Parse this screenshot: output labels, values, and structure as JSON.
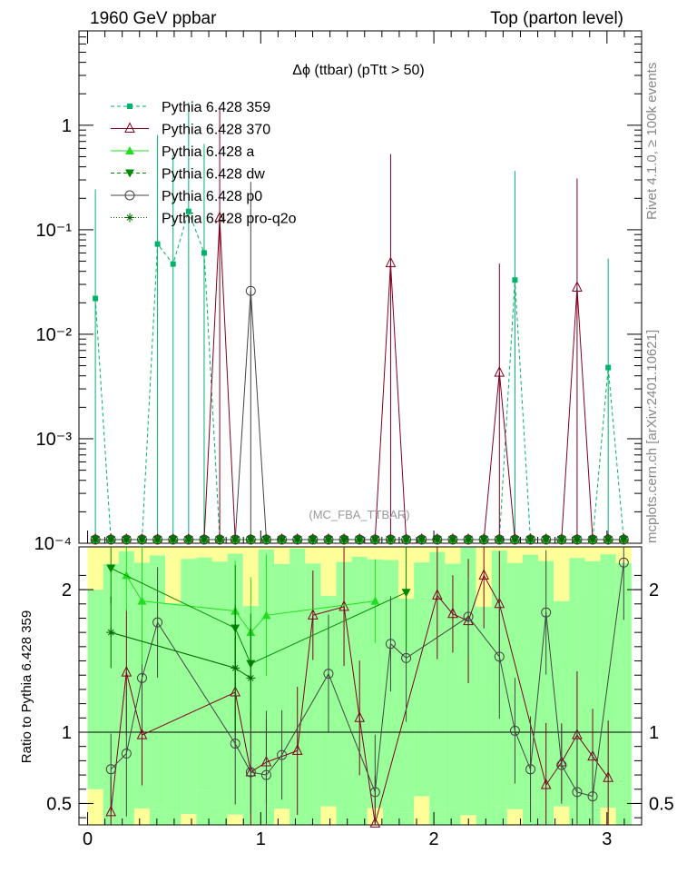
{
  "header": {
    "left_label": "1960 GeV ppbar",
    "right_label": "Top (parton level)",
    "side_label_top": "Rivet 4.1.0, ≥ 100k events",
    "side_label_bottom": "mcplots.cern.ch [arXiv:2401.10621]",
    "watermark": "(MC_FBA_TTBAR)"
  },
  "chart_data": {
    "type": "line",
    "title": "Δϕ (ttbar) (pTtt > 50)",
    "main": {
      "yscale": "log",
      "ylim": [
        0.0001,
        8
      ],
      "xlim": [
        -0.05,
        3.2
      ],
      "y_ticks": [
        {
          "value": 1,
          "label": "1"
        },
        {
          "value": 0.1,
          "label": "10⁻¹"
        },
        {
          "value": 0.01,
          "label": "10⁻²"
        },
        {
          "value": 0.001,
          "label": "10⁻³"
        },
        {
          "value": 0.0001,
          "label": "10⁻⁴"
        }
      ]
    },
    "ratio": {
      "ylabel": "Ratio to Pythia 6.428 359",
      "ylim": [
        0.35,
        2.3
      ],
      "y_ticks": [
        {
          "value": 0.5,
          "label": "0.5"
        },
        {
          "value": 1,
          "label": "1"
        },
        {
          "value": 2,
          "label": "2"
        }
      ],
      "x_ticks": [
        {
          "value": 0,
          "label": "0"
        },
        {
          "value": 1,
          "label": "1"
        },
        {
          "value": 2,
          "label": "2"
        },
        {
          "value": 3,
          "label": "3"
        }
      ]
    },
    "x_bin_centers": [
      0.0449,
      0.1346,
      0.2244,
      0.3142,
      0.4039,
      0.4937,
      0.5834,
      0.6732,
      0.763,
      0.8527,
      0.9425,
      1.0322,
      1.122,
      1.2118,
      1.3015,
      1.3913,
      1.481,
      1.5708,
      1.6606,
      1.7503,
      1.8401,
      1.9298,
      2.0196,
      2.1093,
      2.1991,
      2.2889,
      2.3786,
      2.4684,
      2.5581,
      2.6479,
      2.7377,
      2.8274,
      2.9172,
      3.0069,
      3.0967
    ],
    "series": [
      {
        "name": "Pythia 6.428 359",
        "color": "#00b36b",
        "marker": "square",
        "dash": "4,3",
        "points": [
          [
            0.0449,
            0.022
          ],
          [
            0.4039,
            0.073
          ],
          [
            0.4937,
            0.047
          ],
          [
            0.5834,
            0.15
          ],
          [
            0.6732,
            0.06
          ],
          [
            2.4684,
            0.033
          ],
          [
            3.0069,
            0.0048
          ]
        ]
      },
      {
        "name": "Pythia 6.428 370",
        "color": "#800020",
        "marker": "triangle-open",
        "dash": "",
        "points": [
          [
            0.763,
            0.13
          ],
          [
            1.7503,
            0.048
          ],
          [
            2.3786,
            0.0043
          ],
          [
            2.8274,
            0.028
          ]
        ]
      },
      {
        "name": "Pythia 6.428 a",
        "color": "#22dd22",
        "marker": "triangle",
        "dash": "",
        "points": []
      },
      {
        "name": "Pythia 6.428 dw",
        "color": "#008800",
        "marker": "triangle-down",
        "dash": "4,3",
        "points": []
      },
      {
        "name": "Pythia 6.428 p0",
        "color": "#444444",
        "marker": "circle-open",
        "dash": "",
        "points": [
          [
            0.9425,
            0.026
          ]
        ]
      },
      {
        "name": "Pythia 6.428 pro-q2o",
        "color": "#006600",
        "marker": "star",
        "dash": "1,2",
        "points": []
      }
    ],
    "ratio_series": [
      {
        "name": "Pythia 6.428 370",
        "color": "#800020",
        "marker": "triangle-open",
        "points": [
          [
            0.1346,
            0.44
          ],
          [
            0.2244,
            1.42
          ],
          [
            0.3142,
            0.98
          ],
          [
            0.8527,
            1.28
          ],
          [
            0.9425,
            0.72
          ],
          [
            1.0322,
            0.79
          ],
          [
            1.2118,
            0.87
          ],
          [
            1.3015,
            1.82
          ],
          [
            1.481,
            1.88
          ],
          [
            1.5708,
            1.1
          ],
          [
            1.6606,
            0.36
          ],
          [
            2.0196,
            1.96
          ],
          [
            2.1093,
            1.83
          ],
          [
            2.1991,
            1.78
          ],
          [
            2.2889,
            2.1
          ],
          [
            2.3786,
            1.9
          ],
          [
            2.6479,
            0.63
          ],
          [
            2.7377,
            0.79
          ],
          [
            2.8274,
            0.98
          ],
          [
            2.9172,
            0.83
          ],
          [
            3.0069,
            0.68
          ]
        ]
      },
      {
        "name": "Pythia 6.428 p0",
        "color": "#444444",
        "marker": "circle-open",
        "points": [
          [
            0.1346,
            0.74
          ],
          [
            0.2244,
            0.85
          ],
          [
            0.3142,
            1.38
          ],
          [
            0.4039,
            1.77
          ],
          [
            0.8527,
            0.92
          ],
          [
            0.9425,
            0.72
          ],
          [
            1.0322,
            0.7
          ],
          [
            1.122,
            0.84
          ],
          [
            1.3913,
            1.41
          ],
          [
            1.6606,
            0.58
          ],
          [
            1.7503,
            1.62
          ],
          [
            1.8401,
            1.52
          ],
          [
            2.1991,
            1.81
          ],
          [
            2.3786,
            1.53
          ],
          [
            2.4684,
            1.01
          ],
          [
            2.5581,
            0.74
          ],
          [
            2.6479,
            1.84
          ],
          [
            2.7377,
            0.77
          ],
          [
            2.8274,
            0.58
          ],
          [
            2.9172,
            0.55
          ],
          [
            3.0967,
            2.19
          ]
        ]
      },
      {
        "name": "Pythia 6.428 a",
        "color": "#22dd22",
        "marker": "triangle",
        "points": [
          [
            0.2244,
            2.1
          ],
          [
            0.3142,
            1.92
          ],
          [
            0.8527,
            1.85
          ],
          [
            0.9425,
            1.7
          ],
          [
            1.0322,
            1.82
          ],
          [
            1.6606,
            1.92
          ]
        ]
      },
      {
        "name": "Pythia 6.428 dw",
        "color": "#008800",
        "marker": "triangle-down",
        "points": [
          [
            0.1346,
            2.15
          ],
          [
            0.8527,
            1.73
          ],
          [
            0.9425,
            1.48
          ],
          [
            1.8401,
            1.98
          ]
        ]
      },
      {
        "name": "Pythia 6.428 pro-q2o",
        "color": "#006600",
        "marker": "star",
        "points": [
          [
            0.1346,
            1.7
          ],
          [
            0.8527,
            1.45
          ],
          [
            0.9425,
            1.38
          ]
        ]
      }
    ]
  }
}
